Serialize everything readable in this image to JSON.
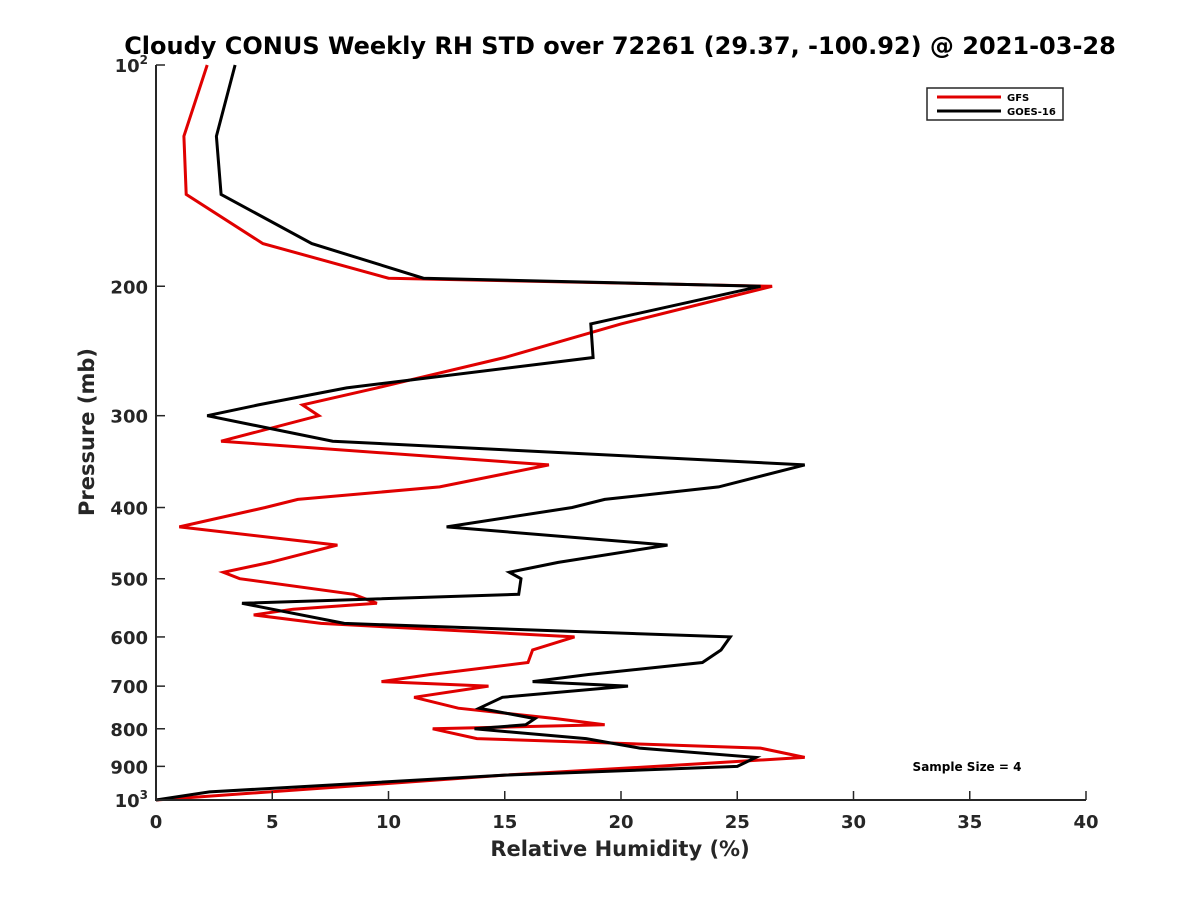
{
  "chart_data": {
    "type": "line",
    "title": "Cloudy CONUS Weekly RH STD over 72261 (29.37, -100.92) @ 2021-03-28",
    "xlabel": "Relative Humidity (%)",
    "ylabel": "Pressure (mb)",
    "xlim": [
      0,
      40
    ],
    "ylim": [
      100,
      1000
    ],
    "y_scale": "log",
    "y_reversed": true,
    "grid": false,
    "legend_position": "top-right",
    "x_ticks": [
      "0",
      "5",
      "10",
      "15",
      "20",
      "25",
      "30",
      "35",
      "40"
    ],
    "y_ticks": [
      {
        "value": 100,
        "base": "10",
        "exp": "2"
      },
      {
        "value": 200,
        "label": "200"
      },
      {
        "value": 300,
        "label": "300"
      },
      {
        "value": 400,
        "label": "400"
      },
      {
        "value": 500,
        "label": "500"
      },
      {
        "value": 600,
        "label": "600"
      },
      {
        "value": 700,
        "label": "700"
      },
      {
        "value": 800,
        "label": "800"
      },
      {
        "value": 900,
        "label": "900"
      },
      {
        "value": 1000,
        "base": "10",
        "exp": "3"
      }
    ],
    "annotation": "Sample Size = 4",
    "series": [
      {
        "name": "GFS",
        "color": "#e00000",
        "points": [
          [
            2.2,
            100
          ],
          [
            1.2,
            125
          ],
          [
            1.3,
            150
          ],
          [
            4.6,
            175
          ],
          [
            10.0,
            195
          ],
          [
            26.5,
            200
          ],
          [
            20.0,
            225
          ],
          [
            15.0,
            250
          ],
          [
            9.5,
            275
          ],
          [
            6.3,
            290
          ],
          [
            7.0,
            300
          ],
          [
            2.8,
            325
          ],
          [
            16.9,
            350
          ],
          [
            12.2,
            375
          ],
          [
            6.1,
            390
          ],
          [
            4.7,
            400
          ],
          [
            1.0,
            425
          ],
          [
            7.8,
            450
          ],
          [
            4.9,
            475
          ],
          [
            2.9,
            490
          ],
          [
            3.6,
            500
          ],
          [
            8.5,
            525
          ],
          [
            9.5,
            540
          ],
          [
            5.9,
            550
          ],
          [
            4.2,
            560
          ],
          [
            7.1,
            575
          ],
          [
            18.0,
            600
          ],
          [
            16.2,
            625
          ],
          [
            16.0,
            650
          ],
          [
            11.8,
            675
          ],
          [
            9.7,
            690
          ],
          [
            14.3,
            700
          ],
          [
            11.1,
            725
          ],
          [
            13.0,
            750
          ],
          [
            17.2,
            775
          ],
          [
            19.3,
            790
          ],
          [
            11.9,
            800
          ],
          [
            13.8,
            825
          ],
          [
            26.0,
            850
          ],
          [
            27.9,
            875
          ],
          [
            21.5,
            900
          ],
          [
            15.0,
            925
          ],
          [
            0.0,
            1000
          ]
        ]
      },
      {
        "name": "GOES-16",
        "color": "#000000",
        "points": [
          [
            3.4,
            100
          ],
          [
            2.6,
            125
          ],
          [
            2.8,
            150
          ],
          [
            6.7,
            175
          ],
          [
            11.5,
            195
          ],
          [
            26.0,
            200
          ],
          [
            18.7,
            225
          ],
          [
            18.8,
            250
          ],
          [
            8.2,
            275
          ],
          [
            4.4,
            290
          ],
          [
            2.2,
            300
          ],
          [
            7.6,
            325
          ],
          [
            27.9,
            350
          ],
          [
            24.2,
            375
          ],
          [
            19.3,
            390
          ],
          [
            17.9,
            400
          ],
          [
            12.5,
            425
          ],
          [
            22.0,
            450
          ],
          [
            17.3,
            475
          ],
          [
            15.2,
            490
          ],
          [
            15.7,
            500
          ],
          [
            15.6,
            525
          ],
          [
            3.7,
            540
          ],
          [
            8.1,
            575
          ],
          [
            24.7,
            600
          ],
          [
            24.3,
            625
          ],
          [
            23.5,
            650
          ],
          [
            18.6,
            675
          ],
          [
            16.2,
            690
          ],
          [
            20.3,
            700
          ],
          [
            14.9,
            725
          ],
          [
            13.9,
            750
          ],
          [
            16.3,
            775
          ],
          [
            15.9,
            790
          ],
          [
            13.7,
            800
          ],
          [
            18.5,
            825
          ],
          [
            20.8,
            850
          ],
          [
            25.8,
            875
          ],
          [
            25.0,
            900
          ],
          [
            15.0,
            925
          ],
          [
            2.3,
            975
          ],
          [
            0.0,
            1000
          ]
        ]
      }
    ]
  }
}
